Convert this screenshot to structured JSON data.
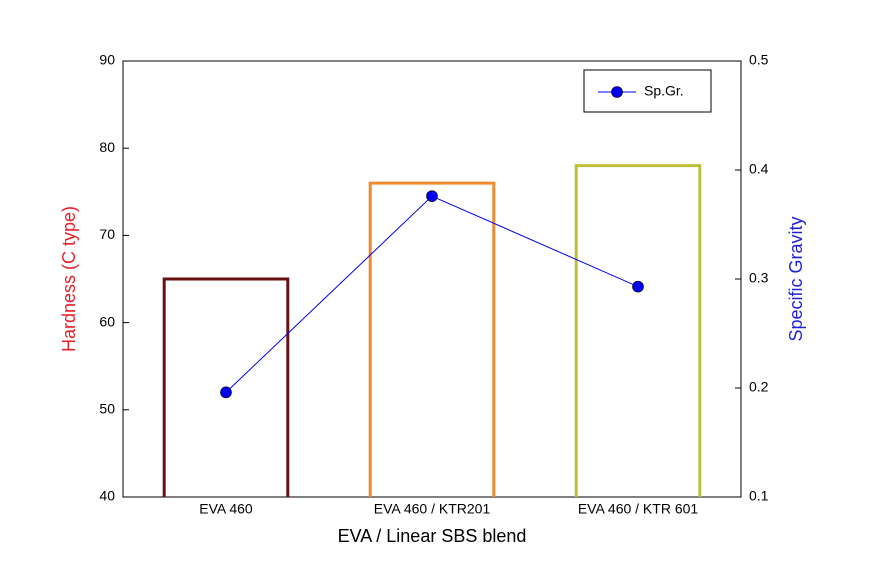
{
  "chart_data": {
    "type": "bar",
    "xlabel": "EVA / Linear SBS blend",
    "ylabel": "Hardness (C type)",
    "y2label": "Specific Gravity",
    "categories": [
      "EVA 460",
      "EVA 460 / KTR201",
      "EVA 460 / KTR 601"
    ],
    "values": [
      65,
      76,
      78
    ],
    "colors": [
      "#6b1010",
      "#f08a30",
      "#bfbf3a"
    ],
    "series": [
      {
        "name": "Sp.Gr.",
        "type": "line",
        "axis": "y2",
        "color": "#0000ee",
        "values": [
          0.196,
          0.376,
          0.293
        ]
      }
    ],
    "ylim": [
      40,
      90
    ],
    "yticks": [
      40,
      50,
      60,
      70,
      80,
      90
    ],
    "y2lim": [
      0.1,
      0.5
    ],
    "y2ticks": [
      0.1,
      0.2,
      0.3,
      0.4,
      0.5
    ],
    "ylabel_color": "#e8202a",
    "y2label_color": "#2020e0",
    "legend": "upper right"
  }
}
